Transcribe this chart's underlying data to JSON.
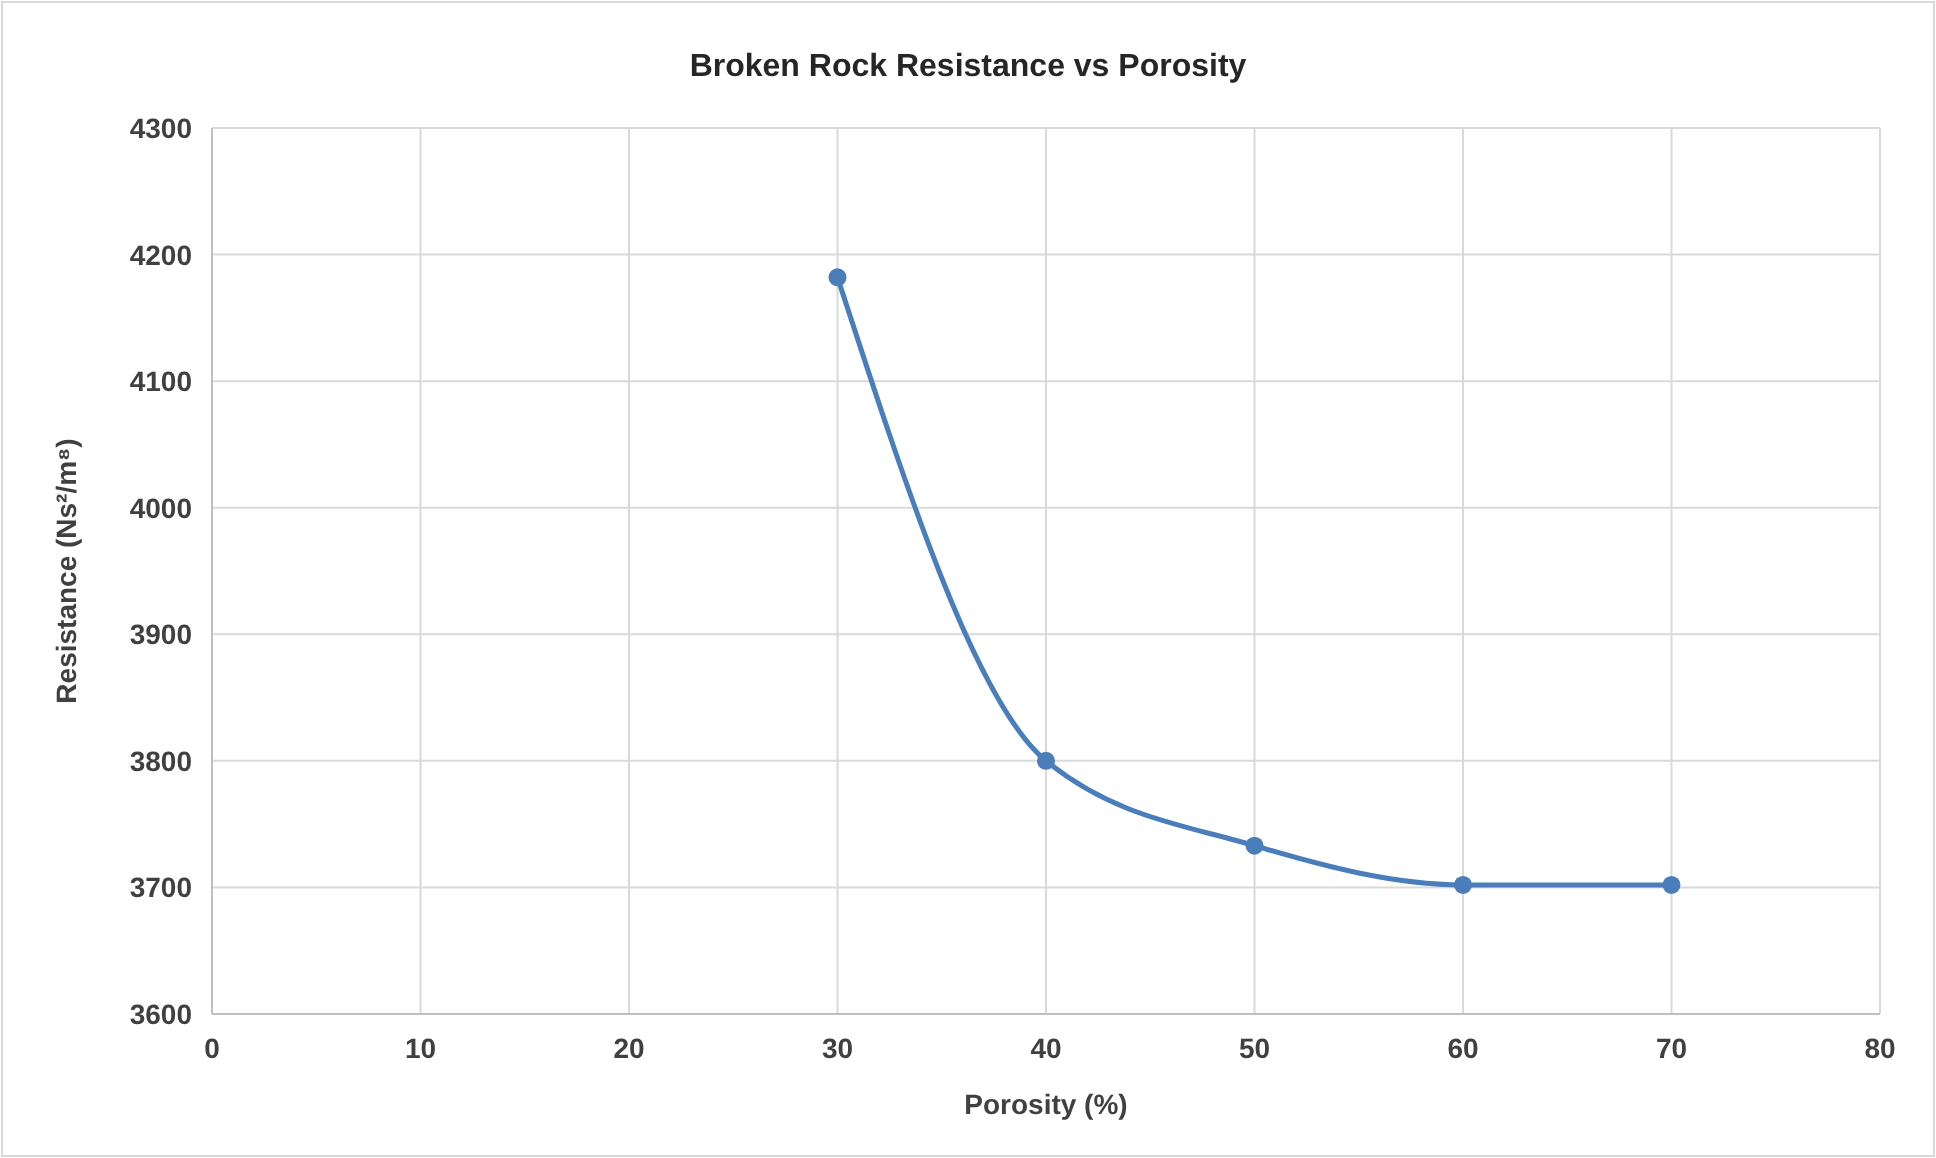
{
  "chart_data": {
    "type": "line",
    "title": "Broken Rock Resistance vs Porosity",
    "xlabel": "Porosity (%)",
    "ylabel": "Resistance (Ns²/m⁸)",
    "x": [
      30,
      40,
      50,
      60,
      70
    ],
    "series": [
      {
        "color": "#4a7ebb",
        "values": [
          4182,
          3800,
          3733,
          3702,
          3702
        ]
      }
    ],
    "xlim": [
      0,
      80
    ],
    "xticks": [
      0,
      10,
      20,
      30,
      40,
      50,
      60,
      70,
      80
    ],
    "ylim": [
      3600,
      4300
    ],
    "yticks": [
      3600,
      3700,
      3800,
      3900,
      4000,
      4100,
      4200,
      4300
    ],
    "grid": true,
    "marker": "circle",
    "line_style": "solid"
  }
}
